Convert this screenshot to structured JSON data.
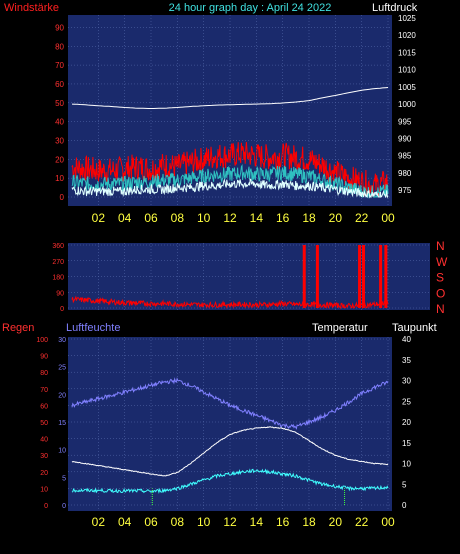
{
  "header": {
    "left_label": "Windstärke",
    "title": "24 hour graph day : April 24 2022",
    "right_label": "Luftdruck"
  },
  "colors": {
    "background": "#000000",
    "plot_bg": "#1a2a6c",
    "grid": "#5a6fb0",
    "wind_label": "#ff2020",
    "title_color": "#40e0e0",
    "x_tick": "#ffff40",
    "pressure": "#ffffff",
    "gust": "#ff0000",
    "wind": "#2fc0c0",
    "wind_avg": "#e0ffff",
    "direction": "#ff0000",
    "rain": "#ff3030",
    "humidity": "#8080ff",
    "temperature": "#ffffff",
    "dewpoint": "#40ffff",
    "rain_bars": "#40ff40"
  },
  "chart_data": [
    {
      "type": "line",
      "name": "wind-pressure",
      "x_ticks": [
        "02",
        "04",
        "06",
        "08",
        "10",
        "12",
        "14",
        "16",
        "18",
        "20",
        "22",
        "00"
      ],
      "left_axis": {
        "label": "Windstärke",
        "ylim": [
          0,
          95
        ],
        "ticks": [
          0,
          10,
          20,
          30,
          40,
          50,
          60,
          70,
          80,
          90
        ]
      },
      "right_axis": {
        "label": "Luftdruck",
        "ylim": [
          973,
          1025
        ],
        "ticks": [
          975,
          980,
          985,
          990,
          995,
          1000,
          1005,
          1010,
          1015,
          1020,
          1025
        ]
      },
      "hours": [
        0,
        1,
        2,
        3,
        4,
        5,
        6,
        7,
        8,
        9,
        10,
        11,
        12,
        13,
        14,
        15,
        16,
        17,
        18,
        19,
        20,
        21,
        22,
        23,
        24
      ],
      "series": [
        {
          "key": "pressure",
          "axis": "right",
          "values": [
            1000,
            999.8,
            999.5,
            999.3,
            999,
            998.8,
            998.7,
            998.8,
            999,
            999.3,
            999.5,
            999.7,
            999.8,
            999.9,
            1000,
            1000.1,
            1000.3,
            1000.6,
            1001,
            1001.8,
            1002.5,
            1003.3,
            1004,
            1004.5,
            1004.8
          ]
        },
        {
          "key": "gust",
          "axis": "left",
          "values": [
            16,
            15,
            14,
            14,
            15,
            16,
            15,
            17,
            16,
            18,
            20,
            22,
            22,
            23,
            22,
            21,
            22,
            21,
            20,
            17,
            13,
            10,
            8,
            6,
            8
          ]
        },
        {
          "key": "wind",
          "axis": "left",
          "values": [
            8,
            7,
            7,
            7,
            7,
            8,
            8,
            9,
            9,
            10,
            11,
            12,
            12,
            13,
            12,
            12,
            13,
            12,
            11,
            9,
            7,
            5,
            3,
            2,
            3
          ]
        },
        {
          "key": "wind_avg",
          "axis": "left",
          "values": [
            4,
            3,
            3,
            3,
            3,
            4,
            4,
            4,
            5,
            5,
            6,
            6,
            7,
            7,
            7,
            6,
            7,
            6,
            6,
            5,
            4,
            3,
            2,
            1,
            1
          ]
        }
      ]
    },
    {
      "type": "line",
      "name": "wind-direction",
      "left_ticks": [
        "360",
        "270",
        "180",
        "90",
        "0"
      ],
      "right_labels": [
        "N",
        "W",
        "S",
        "O",
        "N"
      ],
      "ylim": [
        0,
        360
      ],
      "hours": [
        0,
        1,
        2,
        3,
        4,
        5,
        6,
        7,
        8,
        9,
        10,
        11,
        12,
        13,
        14,
        15,
        16,
        17,
        18,
        19,
        20,
        21,
        22,
        23,
        24
      ],
      "values": [
        50,
        45,
        40,
        35,
        30,
        28,
        25,
        25,
        22,
        20,
        18,
        18,
        20,
        20,
        18,
        20,
        25,
        20,
        20,
        18,
        15,
        12,
        15,
        20,
        30
      ],
      "spikes_to_top_at_hours": [
        17.6,
        18.6,
        21.8,
        22.1,
        23.4,
        23.8
      ]
    },
    {
      "type": "line",
      "name": "rain-humidity-temperature",
      "x_ticks": [
        "02",
        "04",
        "06",
        "08",
        "10",
        "12",
        "14",
        "16",
        "18",
        "20",
        "22",
        "00"
      ],
      "rain_axis": {
        "label": "Regen",
        "ylim": [
          0,
          100
        ],
        "ticks": [
          0,
          10,
          20,
          30,
          40,
          50,
          60,
          70,
          80,
          90,
          100
        ]
      },
      "humidity_axis": {
        "label": "Luftfeuchte",
        "ylim": [
          0,
          30
        ],
        "ticks": [
          0,
          5,
          10,
          15,
          20,
          25,
          30
        ]
      },
      "temp_axis": {
        "label": "Temperatur",
        "dew_label": "Taupunkt",
        "ylim": [
          0,
          40
        ],
        "ticks": [
          0,
          5,
          10,
          15,
          20,
          25,
          30,
          35,
          40
        ]
      },
      "hours": [
        0,
        1,
        2,
        3,
        4,
        5,
        6,
        7,
        8,
        9,
        10,
        11,
        12,
        13,
        14,
        15,
        16,
        17,
        18,
        19,
        20,
        21,
        22,
        23,
        24
      ],
      "series": [
        {
          "key": "humidity",
          "axis": "rain",
          "values": [
            60,
            62,
            64,
            66,
            68,
            70,
            72,
            74,
            75,
            72,
            68,
            64,
            60,
            57,
            54,
            51,
            48,
            47,
            50,
            53,
            57,
            62,
            67,
            71,
            74
          ]
        },
        {
          "key": "temperature",
          "axis": "temp",
          "values": [
            10.5,
            10,
            9.5,
            9,
            8.5,
            8,
            7.5,
            7,
            7.8,
            10,
            12.5,
            15,
            17,
            18,
            18.5,
            18.8,
            18.5,
            17.5,
            15.5,
            13.5,
            12,
            11,
            10.5,
            10,
            9.8
          ]
        },
        {
          "key": "dewpoint",
          "axis": "temp",
          "values": [
            3.5,
            3.5,
            3.5,
            3.4,
            3.4,
            3.4,
            3.3,
            3.5,
            4,
            5,
            6,
            7,
            7.5,
            8,
            8.3,
            8,
            7.5,
            7,
            6,
            5,
            4.5,
            4,
            4,
            4,
            4.3
          ]
        }
      ],
      "rain_marks_at_hours": [
        6.1,
        20.7
      ]
    }
  ]
}
